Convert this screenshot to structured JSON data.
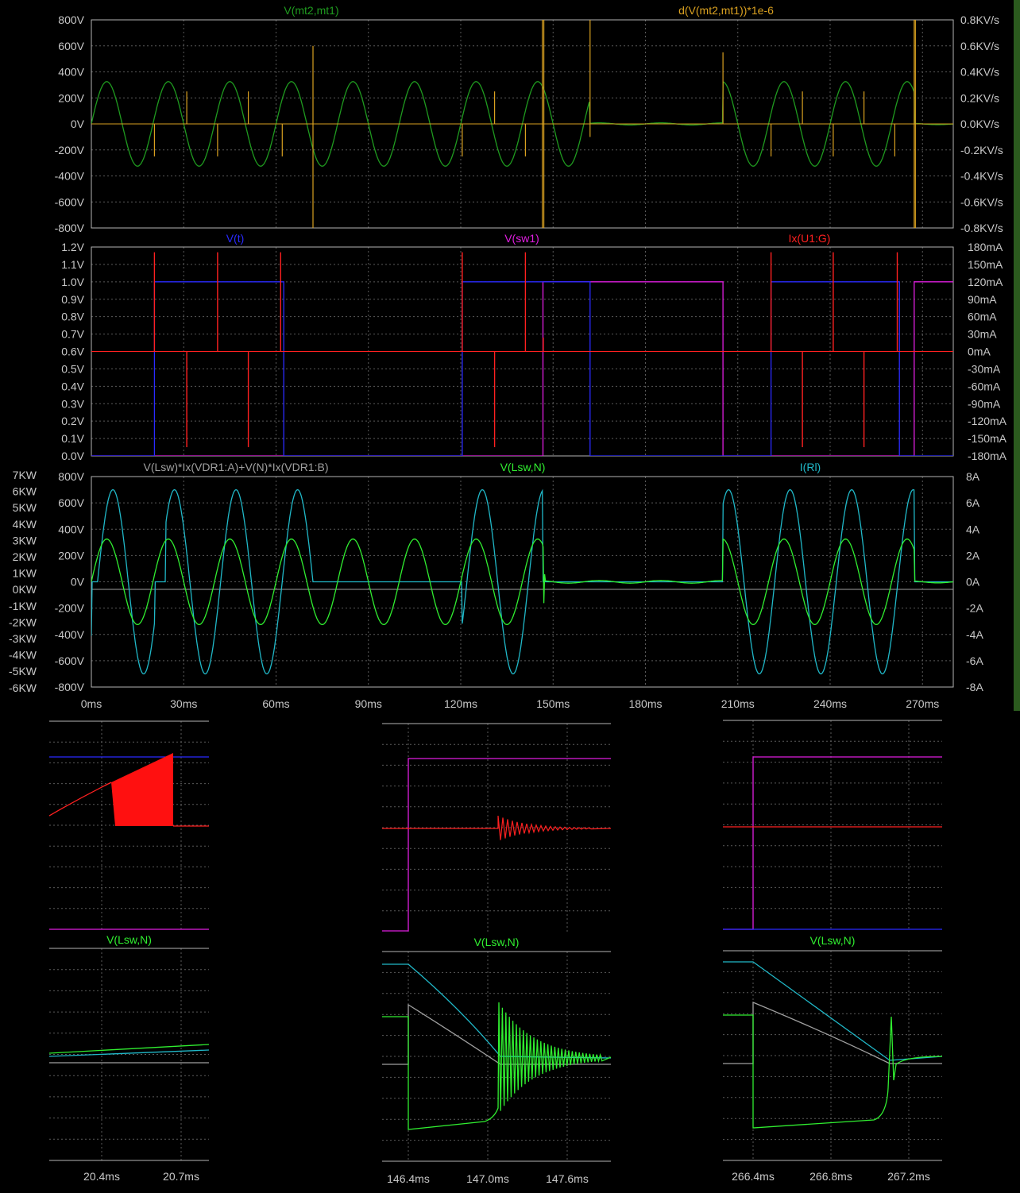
{
  "colors": {
    "background": "#000000",
    "frame": "#b4b4b4",
    "grid": "#5a5a5a",
    "tick_text": "#c8c8c8",
    "right_strip": "#2b5a1e"
  },
  "chart_data": [
    {
      "id": "pane1",
      "type": "line",
      "x_ticks": [],
      "traces": [
        {
          "name": "V(mt2,mt1)",
          "color": "#1f9a1f"
        },
        {
          "name": "d(V(mt2,mt1))*1e-6",
          "color": "#d9a020"
        }
      ],
      "left_ticks": [
        "800V",
        "600V",
        "400V",
        "200V",
        "0V",
        "-200V",
        "-400V",
        "-600V",
        "-800V"
      ],
      "right_ticks": [
        "0.8KV/s",
        "0.6KV/s",
        "0.4KV/s",
        "0.2KV/s",
        "0.0KV/s",
        "-0.2KV/s",
        "-0.4KV/s",
        "-0.6KV/s",
        "-0.8KV/s"
      ],
      "ylim": [
        -800,
        800
      ],
      "xlim": [
        0,
        280
      ]
    },
    {
      "id": "pane2",
      "type": "line",
      "x_ticks": [],
      "traces": [
        {
          "name": "V(t)",
          "color": "#2a2aff"
        },
        {
          "name": "V(sw1)",
          "color": "#e01ee0"
        },
        {
          "name": "Ix(U1:G)",
          "color": "#ff2020"
        }
      ],
      "left_ticks": [
        "1.2V",
        "1.1V",
        "1.0V",
        "0.9V",
        "0.8V",
        "0.7V",
        "0.6V",
        "0.5V",
        "0.4V",
        "0.3V",
        "0.2V",
        "0.1V",
        "0.0V"
      ],
      "right_ticks": [
        "180mA",
        "150mA",
        "120mA",
        "90mA",
        "60mA",
        "30mA",
        "0mA",
        "-30mA",
        "-60mA",
        "-90mA",
        "-120mA",
        "-150mA",
        "-180mA"
      ],
      "ylim": [
        0,
        1.2
      ],
      "xlim": [
        0,
        280
      ]
    },
    {
      "id": "pane3",
      "type": "line",
      "x_ticks": [
        "0ms",
        "30ms",
        "60ms",
        "90ms",
        "120ms",
        "150ms",
        "180ms",
        "210ms",
        "240ms",
        "270ms"
      ],
      "traces": [
        {
          "name": "V(Lsw)*Ix(VDR1:A)+V(N)*Ix(VDR1:B)",
          "color": "#a0a0a0"
        },
        {
          "name": "V(Lsw,N)",
          "color": "#30ee30"
        },
        {
          "name": "I(Rl)",
          "color": "#20b8c8"
        }
      ],
      "far_left_ticks": [
        "7KW",
        "6KW",
        "5KW",
        "4KW",
        "3KW",
        "2KW",
        "1KW",
        "0KW",
        "-1KW",
        "-2KW",
        "-3KW",
        "-4KW",
        "-5KW",
        "-6KW"
      ],
      "left_ticks": [
        "800V",
        "600V",
        "400V",
        "200V",
        "0V",
        "-200V",
        "-400V",
        "-600V",
        "-800V"
      ],
      "right_ticks": [
        "8A",
        "6A",
        "4A",
        "2A",
        "0A",
        "-2A",
        "-4A",
        "-6A",
        "-8A"
      ],
      "ylim": [
        -800,
        800
      ],
      "xlim": [
        0,
        280
      ]
    },
    {
      "id": "zoom1",
      "type": "line",
      "top_label": "",
      "bottom_label": "V(Lsw,N)",
      "x_ticks": [
        "20.4ms",
        "20.7ms"
      ]
    },
    {
      "id": "zoom2",
      "type": "line",
      "top_label": "",
      "bottom_label": "V(Lsw,N)",
      "x_ticks": [
        "146.4ms",
        "147.0ms",
        "147.6ms"
      ]
    },
    {
      "id": "zoom3",
      "type": "line",
      "top_label": "",
      "bottom_label": "V(Lsw,N)",
      "x_ticks": [
        "266.4ms",
        "266.8ms",
        "267.2ms"
      ]
    }
  ]
}
